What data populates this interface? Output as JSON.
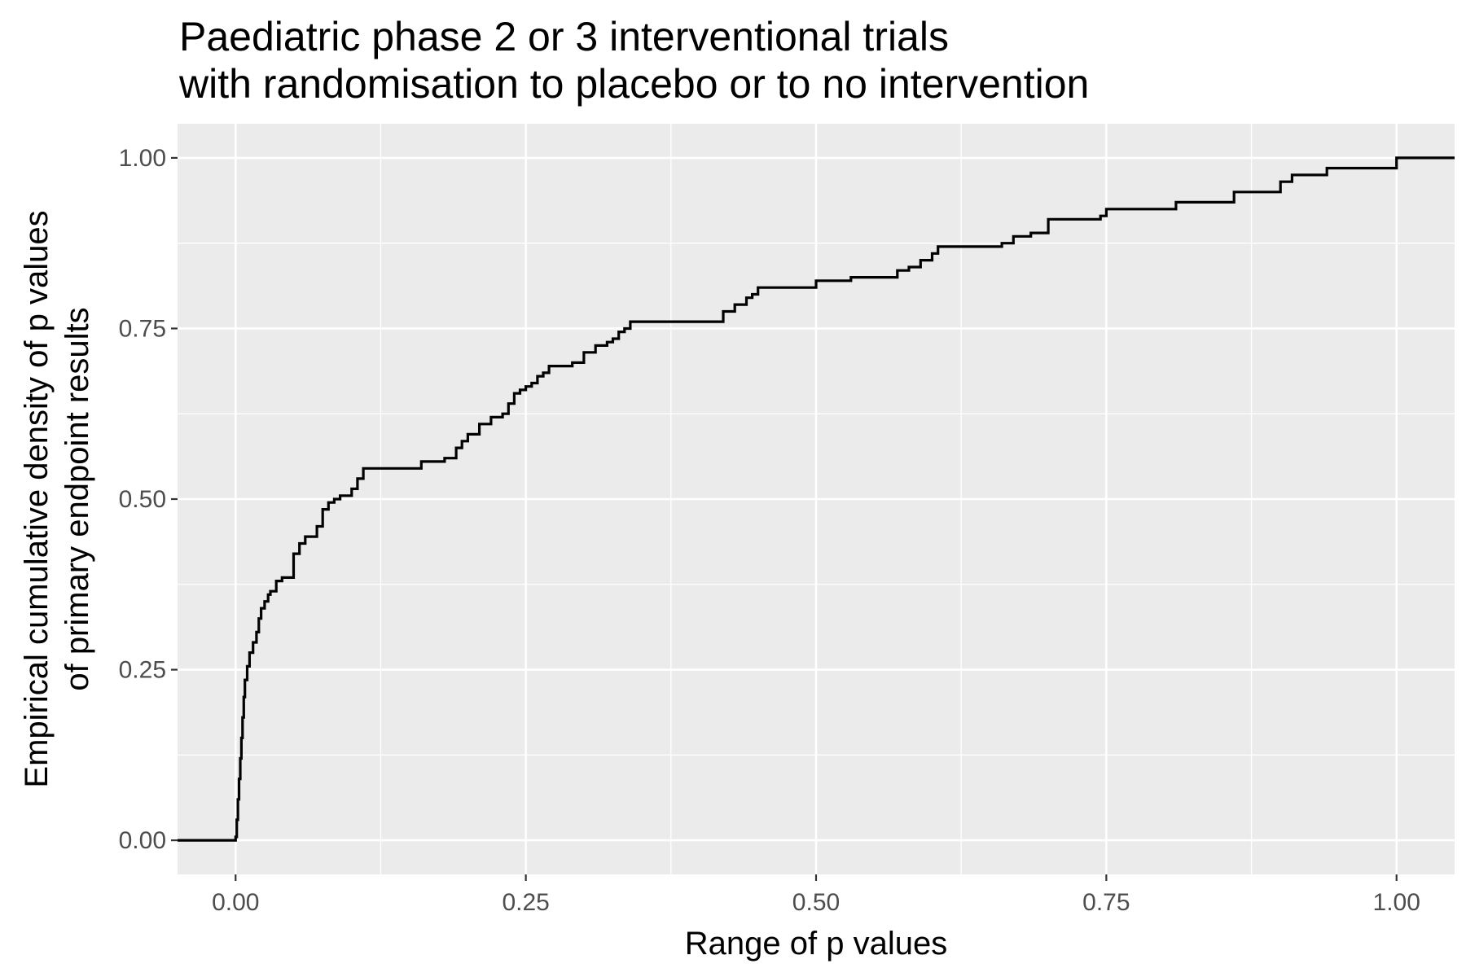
{
  "chart_data": {
    "type": "line",
    "subtype": "ecdf-step",
    "title_lines": [
      "Paediatric phase 2 or 3 interventional trials",
      "with randomisation to placebo or to no intervention"
    ],
    "xlabel": "Range of p values",
    "ylabel_lines": [
      "Empirical cumulative density of p values",
      "of primary endpoint results"
    ],
    "xlim": [
      -0.05,
      1.05
    ],
    "ylim": [
      -0.05,
      1.05
    ],
    "x_ticks": [
      0,
      0.25,
      0.5,
      0.75,
      1
    ],
    "x_tick_labels": [
      "0.00",
      "0.25",
      "0.50",
      "0.75",
      "1.00"
    ],
    "y_ticks": [
      0,
      0.25,
      0.5,
      0.75,
      1
    ],
    "y_tick_labels": [
      "0.00",
      "0.25",
      "0.50",
      "0.75",
      "1.00"
    ],
    "grid": true,
    "line_color": "#000000",
    "series": [
      {
        "x": [
          -0.05,
          0.0,
          0.001,
          0.002,
          0.003,
          0.004,
          0.005,
          0.006,
          0.007,
          0.008,
          0.01,
          0.012,
          0.015,
          0.018,
          0.02,
          0.022,
          0.025,
          0.028,
          0.03,
          0.035,
          0.04,
          0.05,
          0.055,
          0.06,
          0.07,
          0.075,
          0.08,
          0.085,
          0.09,
          0.1,
          0.105,
          0.11,
          0.16,
          0.18,
          0.19,
          0.195,
          0.2,
          0.21,
          0.22,
          0.23,
          0.235,
          0.24,
          0.245,
          0.25,
          0.255,
          0.26,
          0.265,
          0.27,
          0.29,
          0.3,
          0.31,
          0.32,
          0.325,
          0.33,
          0.335,
          0.34,
          0.42,
          0.43,
          0.44,
          0.445,
          0.45,
          0.46,
          0.5,
          0.53,
          0.55,
          0.57,
          0.58,
          0.59,
          0.6,
          0.605,
          0.66,
          0.67,
          0.685,
          0.7,
          0.7,
          0.745,
          0.75,
          0.81,
          0.86,
          0.9,
          0.91,
          0.92,
          0.94,
          0.96,
          1.0,
          1.05
        ],
        "y": [
          0.0,
          0.005,
          0.03,
          0.06,
          0.09,
          0.12,
          0.15,
          0.18,
          0.21,
          0.235,
          0.255,
          0.275,
          0.29,
          0.305,
          0.325,
          0.34,
          0.35,
          0.36,
          0.365,
          0.38,
          0.385,
          0.42,
          0.435,
          0.445,
          0.46,
          0.485,
          0.495,
          0.5,
          0.505,
          0.515,
          0.53,
          0.545,
          0.555,
          0.56,
          0.575,
          0.585,
          0.595,
          0.61,
          0.62,
          0.625,
          0.64,
          0.655,
          0.66,
          0.665,
          0.67,
          0.68,
          0.685,
          0.695,
          0.7,
          0.715,
          0.725,
          0.73,
          0.735,
          0.745,
          0.75,
          0.76,
          0.775,
          0.785,
          0.795,
          0.8,
          0.81,
          0.81,
          0.82,
          0.825,
          0.825,
          0.835,
          0.84,
          0.85,
          0.86,
          0.87,
          0.875,
          0.885,
          0.89,
          0.89,
          0.91,
          0.915,
          0.925,
          0.935,
          0.95,
          0.965,
          0.975,
          0.975,
          0.985,
          0.985,
          1.0,
          1.0
        ]
      }
    ]
  }
}
